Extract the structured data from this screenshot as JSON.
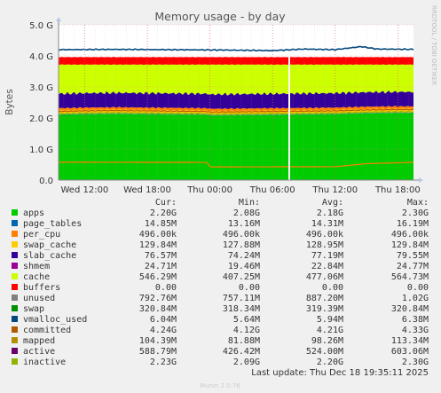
{
  "chart_data": {
    "type": "area",
    "title": "Memory usage - by day",
    "ylabel": "Bytes",
    "xlabel": "",
    "side_label": "RRDTOOL / TOBI OETIKER",
    "y_ticks": [
      "0.0",
      "1.0 G",
      "2.0 G",
      "3.0 G",
      "4.0 G",
      "5.0 G"
    ],
    "ylim": [
      0,
      5.0
    ],
    "x_ticks": [
      "Wed 12:00",
      "Wed 18:00",
      "Thu 00:00",
      "Thu 06:00",
      "Thu 12:00",
      "Thu 18:00"
    ],
    "x_hours_range": [
      9.5,
      43.5
    ],
    "grid": true,
    "stack_avg_gb": {
      "apps": 2.18,
      "page_tables": 0.0143,
      "swap_cache": 0.126,
      "slab_cache": 0.0754,
      "cache": 0.466,
      "buffers": 0.0,
      "unused": 0.866,
      "swap": 0.312
    },
    "lines_avg_gb": {
      "committed": 4.21,
      "mapped": 0.096,
      "active": 0.512,
      "inactive": 2.2
    },
    "apps_profile_x_hours": [
      9.5,
      12,
      15,
      18,
      21,
      23.7,
      24,
      27,
      30,
      33,
      36,
      39,
      42,
      43.5
    ],
    "apps_profile_gb": [
      2.1,
      2.12,
      2.13,
      2.12,
      2.11,
      2.1,
      2.08,
      2.09,
      2.1,
      2.11,
      2.12,
      2.15,
      2.16,
      2.16
    ],
    "active_profile_x_hours": [
      9.5,
      23.7,
      24.0,
      36,
      39,
      43.5
    ],
    "active_profile_gb": [
      0.575,
      0.57,
      0.425,
      0.43,
      0.53,
      0.57
    ],
    "committed_profile_x_hours": [
      9.5,
      15,
      20,
      25,
      30,
      33,
      36,
      38.5,
      40,
      43.5
    ],
    "committed_profile_gb": [
      4.2,
      4.21,
      4.2,
      4.19,
      4.17,
      4.22,
      4.2,
      4.3,
      4.22,
      4.21
    ],
    "now_marker_x_hours": 31.6,
    "series": [
      {
        "name": "apps",
        "color": "#00cc00",
        "cur": "2.20G",
        "min": "2.08G",
        "avg": "2.18G",
        "max": "2.30G"
      },
      {
        "name": "page_tables",
        "color": "#0066b3",
        "cur": "14.85M",
        "min": "13.16M",
        "avg": "14.31M",
        "max": "16.19M"
      },
      {
        "name": "per_cpu",
        "color": "#ff8000",
        "cur": "496.00k",
        "min": "496.00k",
        "avg": "496.00k",
        "max": "496.00k"
      },
      {
        "name": "swap_cache",
        "color": "#ffcc00",
        "cur": "129.84M",
        "min": "127.88M",
        "avg": "128.95M",
        "max": "129.84M"
      },
      {
        "name": "slab_cache",
        "color": "#330099",
        "cur": "76.57M",
        "min": "74.24M",
        "avg": "77.19M",
        "max": "79.55M"
      },
      {
        "name": "shmem",
        "color": "#990099",
        "cur": "24.71M",
        "min": "19.46M",
        "avg": "22.84M",
        "max": "24.77M"
      },
      {
        "name": "cache",
        "color": "#ccff00",
        "cur": "546.29M",
        "min": "407.25M",
        "avg": "477.06M",
        "max": "564.73M"
      },
      {
        "name": "buffers",
        "color": "#ff0000",
        "cur": "0.00",
        "min": "0.00",
        "avg": "0.00",
        "max": "0.00"
      },
      {
        "name": "unused",
        "color": "#808080",
        "cur": "792.76M",
        "min": "757.11M",
        "avg": "887.20M",
        "max": "1.02G"
      },
      {
        "name": "swap",
        "color": "#008f00",
        "cur": "320.84M",
        "min": "318.34M",
        "avg": "319.39M",
        "max": "320.84M"
      },
      {
        "name": "vmalloc_used",
        "color": "#00487d",
        "cur": "6.04M",
        "min": "5.64M",
        "avg": "5.94M",
        "max": "6.38M"
      },
      {
        "name": "committed",
        "color": "#b35a00",
        "cur": "4.24G",
        "min": "4.12G",
        "avg": "4.21G",
        "max": "4.33G"
      },
      {
        "name": "mapped",
        "color": "#b38f00",
        "cur": "104.39M",
        "min": "81.88M",
        "avg": "98.26M",
        "max": "113.34M"
      },
      {
        "name": "active",
        "color": "#6b006b",
        "cur": "588.79M",
        "min": "426.42M",
        "avg": "524.00M",
        "max": "603.06M"
      },
      {
        "name": "inactive",
        "color": "#8fb300",
        "cur": "2.23G",
        "min": "2.09G",
        "avg": "2.20G",
        "max": "2.30G"
      }
    ],
    "colors": {
      "apps": "#00cc00",
      "swap_cache": "#ffcc00",
      "slab_cache": "#ff8000",
      "cache": "#330099",
      "unused": "#ccff00",
      "swap": "#ff0000",
      "committed": "#00487d",
      "active": "#ff8000",
      "page_tables": "#0066b3",
      "mapped": "#b35a00",
      "inactive": "#8fb300"
    },
    "column_headers": [
      "Cur:",
      "Min:",
      "Avg:",
      "Max:"
    ],
    "last_update": "Last update: Thu Dec 18 19:35:11 2025",
    "footer": "Munin 2.0.76"
  }
}
